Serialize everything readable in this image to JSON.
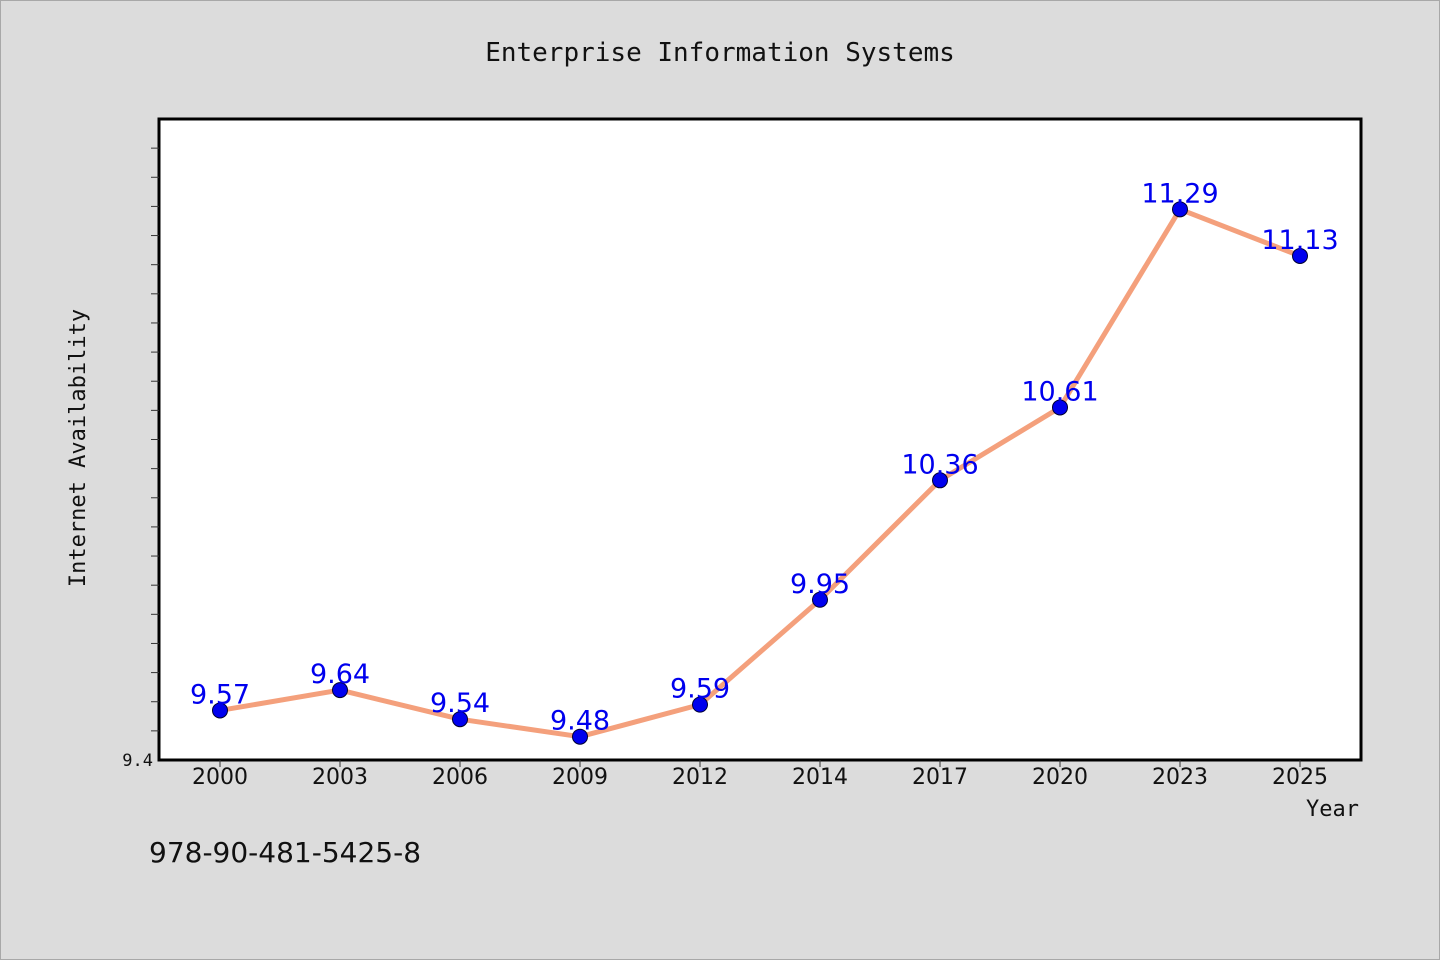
{
  "chart_data": {
    "type": "line",
    "title": "Enterprise Information Systems",
    "xlabel": "Year",
    "ylabel": "Internet Availability",
    "x": [
      "2000",
      "2003",
      "2006",
      "2009",
      "2012",
      "2014",
      "2017",
      "2020",
      "2023",
      "2025"
    ],
    "series": [
      {
        "values": [
          9.57,
          9.64,
          9.54,
          9.48,
          9.59,
          9.95,
          10.36,
          10.61,
          11.29,
          11.13
        ],
        "line_color": "#f4a07c",
        "marker_color": "#0000ee",
        "label_color": "#0000ee"
      }
    ],
    "ylim": [
      9.4,
      11.6
    ],
    "ytick_labels": [
      {
        "value": 9.4,
        "label": "9.4"
      }
    ],
    "grid": false,
    "legend": "none"
  },
  "footer": {
    "isbn": "978-90-481-5425-8"
  }
}
